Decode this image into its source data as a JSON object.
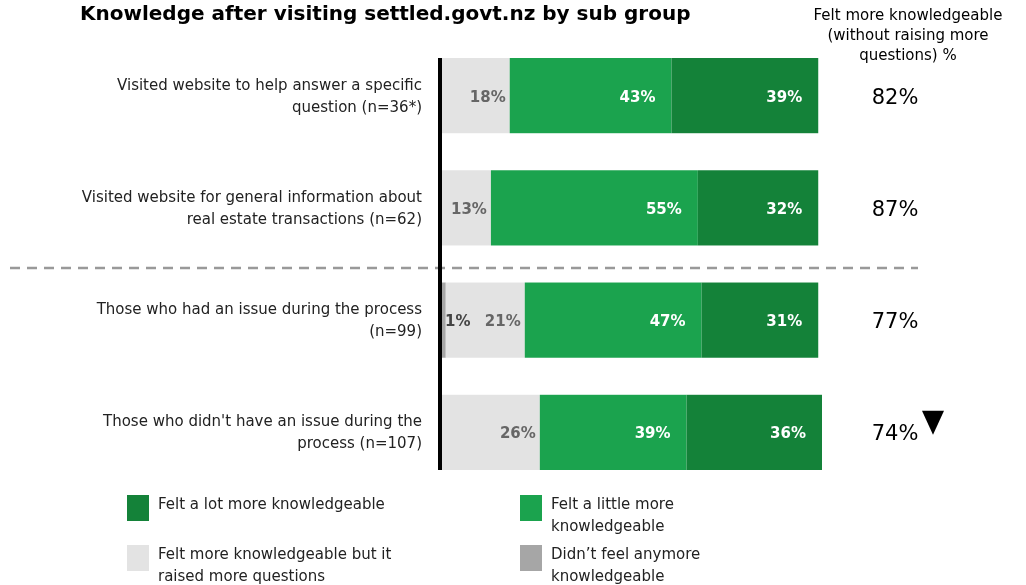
{
  "chart_data": {
    "type": "bar",
    "orientation": "horizontal",
    "stacked": true,
    "title": "Knowledge after visiting settled.govt.nz by sub group",
    "categories": [
      "Visited website to help answer a specific question (n=36*)",
      "Visited website for general information about real estate transactions (n=62)",
      "Those who had an issue during the process (n=99)",
      "Those who didn't have an issue during the process (n=107)"
    ],
    "series": [
      {
        "name": "Didn’t feel anymore knowledgeable",
        "color": "#a6a6a6",
        "values": [
          0,
          0,
          1,
          0
        ],
        "value_labels": [
          null,
          null,
          "1%",
          null
        ]
      },
      {
        "name": "Felt more knowledgeable but it raised more questions",
        "color": "#e3e3e3",
        "values": [
          18,
          13,
          21,
          26
        ],
        "value_labels": [
          "18%",
          "13%",
          "21%",
          "26%"
        ]
      },
      {
        "name": "Felt a little more knowledgeable",
        "color": "#1ba34e",
        "values": [
          43,
          55,
          47,
          39
        ],
        "value_labels": [
          "43%",
          "55%",
          "47%",
          "39%"
        ]
      },
      {
        "name": "Felt a lot more knowledgeable",
        "color": "#148239",
        "values": [
          39,
          32,
          31,
          36
        ],
        "value_labels": [
          "39%",
          "32%",
          "31%",
          "36%"
        ]
      }
    ],
    "xlim": [
      0,
      101
    ],
    "tick_labels": "y",
    "legend": "bottom",
    "annotations": [
      "Felt more knowledgeable (without raising more questions) %",
      "82%",
      "87%",
      "77%",
      "74%"
    ]
  }
}
